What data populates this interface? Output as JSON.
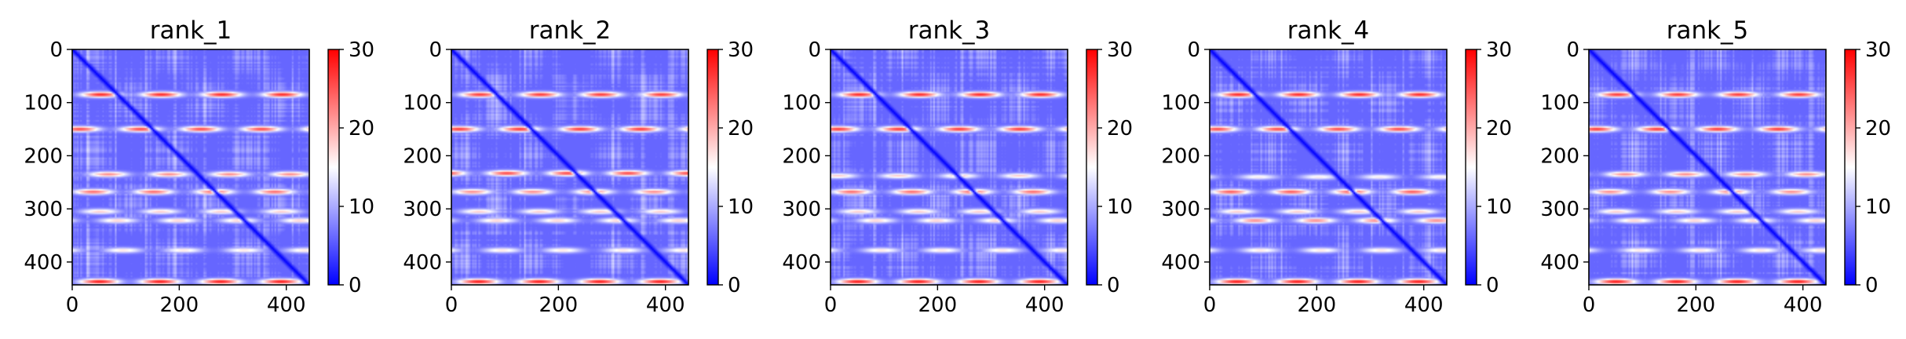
{
  "chart_data": [
    {
      "type": "heatmap",
      "title": "rank_1",
      "xlim": [
        0,
        443
      ],
      "ylim": [
        443,
        0
      ],
      "y_inverted": true,
      "xticks": [
        "0",
        "200",
        "400"
      ],
      "xtick_values": [
        0,
        200,
        400
      ],
      "yticks": [
        "0",
        "100",
        "200",
        "300",
        "400"
      ],
      "ytick_values": [
        0,
        100,
        200,
        300,
        400
      ],
      "colorbar": {
        "cmap": "bwr",
        "min": 0,
        "max": 30,
        "ticks": [
          "0",
          "10",
          "20",
          "30"
        ],
        "tick_values": [
          0,
          10,
          20,
          30
        ]
      },
      "high_bands": [
        {
          "center": 85,
          "peak": 28
        },
        {
          "center": 150,
          "peak": 26
        },
        {
          "center": 235,
          "peak": 22
        },
        {
          "center": 268,
          "peak": 24
        },
        {
          "center": 305,
          "peak": 18
        },
        {
          "center": 322,
          "peak": 18
        },
        {
          "center": 378,
          "peak": 17
        },
        {
          "center": 437,
          "peak": 29
        }
      ],
      "diagonal_value": 0,
      "background_value": 6
    },
    {
      "type": "heatmap",
      "title": "rank_2",
      "xlim": [
        0,
        443
      ],
      "ylim": [
        443,
        0
      ],
      "y_inverted": true,
      "xticks": [
        "0",
        "200",
        "400"
      ],
      "xtick_values": [
        0,
        200,
        400
      ],
      "yticks": [
        "0",
        "100",
        "200",
        "300",
        "400"
      ],
      "ytick_values": [
        0,
        100,
        200,
        300,
        400
      ],
      "colorbar": {
        "cmap": "bwr",
        "min": 0,
        "max": 30,
        "ticks": [
          "0",
          "10",
          "20",
          "30"
        ],
        "tick_values": [
          0,
          10,
          20,
          30
        ]
      },
      "high_bands": [
        {
          "center": 85,
          "peak": 27
        },
        {
          "center": 150,
          "peak": 27
        },
        {
          "center": 233,
          "peak": 26
        },
        {
          "center": 268,
          "peak": 22
        },
        {
          "center": 305,
          "peak": 18
        },
        {
          "center": 322,
          "peak": 18
        },
        {
          "center": 378,
          "peak": 17
        },
        {
          "center": 437,
          "peak": 29
        }
      ],
      "diagonal_value": 0,
      "background_value": 6
    },
    {
      "type": "heatmap",
      "title": "rank_3",
      "xlim": [
        0,
        443
      ],
      "ylim": [
        443,
        0
      ],
      "y_inverted": true,
      "xticks": [
        "0",
        "200",
        "400"
      ],
      "xtick_values": [
        0,
        200,
        400
      ],
      "yticks": [
        "0",
        "100",
        "200",
        "300",
        "400"
      ],
      "ytick_values": [
        0,
        100,
        200,
        300,
        400
      ],
      "colorbar": {
        "cmap": "bwr",
        "min": 0,
        "max": 30,
        "ticks": [
          "0",
          "10",
          "20",
          "30"
        ],
        "tick_values": [
          0,
          10,
          20,
          30
        ]
      },
      "high_bands": [
        {
          "center": 85,
          "peak": 28
        },
        {
          "center": 150,
          "peak": 27
        },
        {
          "center": 238,
          "peak": 18
        },
        {
          "center": 268,
          "peak": 24
        },
        {
          "center": 305,
          "peak": 18
        },
        {
          "center": 322,
          "peak": 18
        },
        {
          "center": 378,
          "peak": 17
        },
        {
          "center": 437,
          "peak": 29
        }
      ],
      "diagonal_value": 0,
      "background_value": 6
    },
    {
      "type": "heatmap",
      "title": "rank_4",
      "xlim": [
        0,
        443
      ],
      "ylim": [
        443,
        0
      ],
      "y_inverted": true,
      "xticks": [
        "0",
        "200",
        "400"
      ],
      "xtick_values": [
        0,
        200,
        400
      ],
      "yticks": [
        "0",
        "100",
        "200",
        "300",
        "400"
      ],
      "ytick_values": [
        0,
        100,
        200,
        300,
        400
      ],
      "colorbar": {
        "cmap": "bwr",
        "min": 0,
        "max": 30,
        "ticks": [
          "0",
          "10",
          "20",
          "30"
        ],
        "tick_values": [
          0,
          10,
          20,
          30
        ]
      },
      "high_bands": [
        {
          "center": 85,
          "peak": 28
        },
        {
          "center": 150,
          "peak": 26
        },
        {
          "center": 240,
          "peak": 16
        },
        {
          "center": 268,
          "peak": 25
        },
        {
          "center": 305,
          "peak": 18
        },
        {
          "center": 322,
          "peak": 22
        },
        {
          "center": 378,
          "peak": 17
        },
        {
          "center": 437,
          "peak": 29
        }
      ],
      "diagonal_value": 0,
      "background_value": 6
    },
    {
      "type": "heatmap",
      "title": "rank_5",
      "xlim": [
        0,
        443
      ],
      "ylim": [
        443,
        0
      ],
      "y_inverted": true,
      "xticks": [
        "0",
        "200",
        "400"
      ],
      "xtick_values": [
        0,
        200,
        400
      ],
      "yticks": [
        "0",
        "100",
        "200",
        "300",
        "400"
      ],
      "ytick_values": [
        0,
        100,
        200,
        300,
        400
      ],
      "colorbar": {
        "cmap": "bwr",
        "min": 0,
        "max": 30,
        "ticks": [
          "0",
          "10",
          "20",
          "30"
        ],
        "tick_values": [
          0,
          10,
          20,
          30
        ]
      },
      "high_bands": [
        {
          "center": 85,
          "peak": 27
        },
        {
          "center": 150,
          "peak": 27
        },
        {
          "center": 235,
          "peak": 22
        },
        {
          "center": 268,
          "peak": 22
        },
        {
          "center": 305,
          "peak": 18
        },
        {
          "center": 322,
          "peak": 18
        },
        {
          "center": 378,
          "peak": 17
        },
        {
          "center": 437,
          "peak": 29
        }
      ],
      "diagonal_value": 0,
      "background_value": 6
    }
  ]
}
